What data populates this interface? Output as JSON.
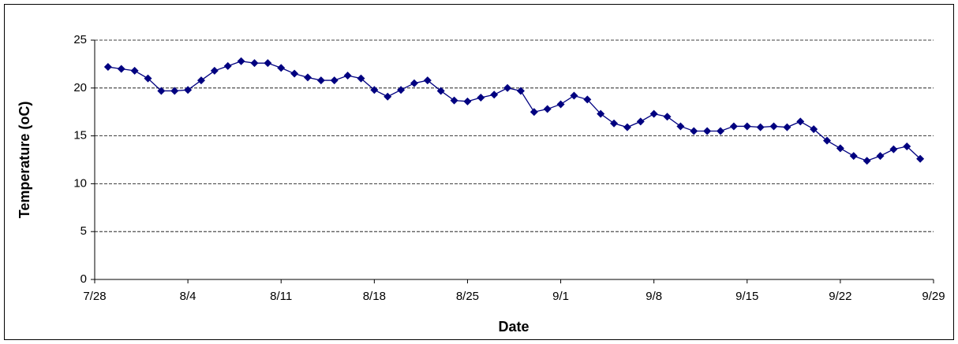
{
  "chart_data": {
    "type": "line",
    "x_label": "Date",
    "y_label": "Temperature (oC)",
    "xlim": [
      "7/28",
      "9/29"
    ],
    "xticks": [
      "7/28",
      "8/4",
      "8/11",
      "8/18",
      "8/25",
      "9/1",
      "9/8",
      "9/15",
      "9/22",
      "9/29"
    ],
    "ylim": [
      0,
      25
    ],
    "yticks": [
      0,
      5,
      10,
      15,
      20,
      25
    ],
    "grid": true,
    "x": [
      "7/29",
      "7/30",
      "7/31",
      "8/1",
      "8/2",
      "8/3",
      "8/4",
      "8/5",
      "8/6",
      "8/7",
      "8/8",
      "8/9",
      "8/10",
      "8/11",
      "8/12",
      "8/13",
      "8/14",
      "8/15",
      "8/16",
      "8/17",
      "8/18",
      "8/19",
      "8/20",
      "8/21",
      "8/22",
      "8/23",
      "8/24",
      "8/25",
      "8/26",
      "8/27",
      "8/28",
      "8/29",
      "8/30",
      "8/31",
      "9/1",
      "9/2",
      "9/3",
      "9/4",
      "9/5",
      "9/6",
      "9/7",
      "9/8",
      "9/9",
      "9/10",
      "9/11",
      "9/12",
      "9/13",
      "9/14",
      "9/15",
      "9/16",
      "9/17",
      "9/18",
      "9/19",
      "9/20",
      "9/21",
      "9/22",
      "9/23",
      "9/24",
      "9/25",
      "9/26",
      "9/27",
      "9/28"
    ],
    "series": [
      {
        "color": "#000080",
        "values": [
          22.2,
          22.0,
          21.8,
          21.0,
          19.7,
          19.7,
          19.8,
          20.8,
          21.8,
          22.3,
          22.8,
          22.6,
          22.6,
          22.1,
          21.5,
          21.1,
          20.8,
          20.8,
          21.3,
          21.0,
          19.8,
          19.1,
          19.8,
          20.5,
          20.8,
          19.7,
          18.7,
          18.6,
          19.0,
          19.3,
          20.0,
          19.7,
          17.5,
          17.8,
          18.3,
          19.2,
          18.8,
          17.3,
          16.3,
          15.9,
          16.5,
          17.3,
          17.0,
          16.0,
          15.5,
          15.5,
          15.5,
          16.0,
          16.0,
          15.9,
          16.0,
          15.9,
          16.5,
          15.7,
          14.5,
          13.7,
          12.9,
          12.4,
          12.9,
          13.6,
          13.9,
          12.6
        ]
      }
    ]
  }
}
